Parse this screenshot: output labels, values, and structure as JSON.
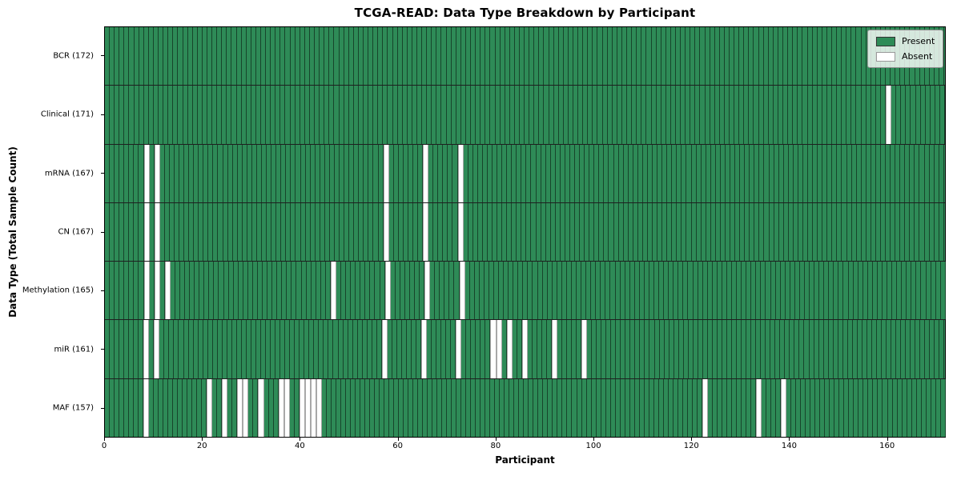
{
  "chart_data": {
    "type": "heatmap",
    "title": "TCGA-READ: Data Type Breakdown by Participant",
    "xlabel": "Participant",
    "ylabel": "Data Type (Total Sample Count)",
    "n_participants": 172,
    "x_ticks": [
      0,
      20,
      40,
      60,
      80,
      100,
      120,
      140,
      160
    ],
    "legend": {
      "present_label": "Present",
      "absent_label": "Absent",
      "position": "upper right"
    },
    "colors": {
      "present": "#2E8B57",
      "absent": "#FFFFFF"
    },
    "grid": true,
    "rows": [
      {
        "label": "BCR (172)",
        "total": 172,
        "absent_participants": []
      },
      {
        "label": "Clinical (171)",
        "total": 171,
        "absent_participants": [
          160
        ]
      },
      {
        "label": "mRNA (167)",
        "total": 167,
        "absent_participants": [
          8,
          10,
          57,
          65,
          72
        ]
      },
      {
        "label": "CN (167)",
        "total": 167,
        "absent_participants": [
          8,
          10,
          57,
          65,
          72
        ]
      },
      {
        "label": "Methylation (165)",
        "total": 165,
        "absent_participants": [
          8,
          10,
          12,
          46,
          57,
          65,
          72
        ]
      },
      {
        "label": "miR (161)",
        "total": 161,
        "absent_participants": [
          8,
          10,
          57,
          65,
          72,
          79,
          80,
          82,
          85,
          91,
          97
        ]
      },
      {
        "label": "MAF (157)",
        "total": 157,
        "absent_participants": [
          8,
          21,
          24,
          27,
          28,
          31,
          35,
          36,
          39,
          40,
          41,
          42,
          122,
          133,
          138
        ]
      }
    ]
  }
}
